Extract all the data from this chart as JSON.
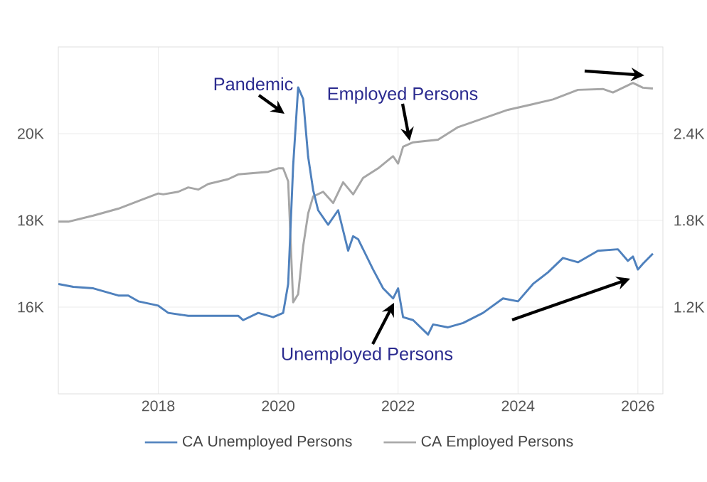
{
  "chart_data": {
    "type": "line",
    "annotations": [
      "Pandemic",
      "Employed Persons",
      "Unemployed Persons"
    ],
    "series": [
      {
        "name": "CA Unemployed Persons",
        "color": "#4f81bd",
        "axis": "y2",
        "x": [
          "2016-05",
          "2016-08",
          "2016-12",
          "2017-05",
          "2017-07",
          "2017-09",
          "2018-01",
          "2018-03",
          "2018-07",
          "2018-11",
          "2019-02",
          "2019-05",
          "2019-06",
          "2019-09",
          "2019-11",
          "2019-12",
          "2020-02",
          "2020-03",
          "2020-04",
          "2020-05",
          "2020-06",
          "2020-07",
          "2020-08",
          "2020-09",
          "2020-11",
          "2021-01",
          "2021-03",
          "2021-04",
          "2021-05",
          "2021-08",
          "2021-10",
          "2021-12",
          "2022-01",
          "2022-02",
          "2022-04",
          "2022-07",
          "2022-08",
          "2022-11",
          "2023-02",
          "2023-06",
          "2023-10",
          "2024-01",
          "2024-04",
          "2024-07",
          "2024-10",
          "2025-01",
          "2025-05",
          "2025-09",
          "2025-11",
          "2025-12",
          "2026-01",
          "2026-02",
          "2026-04"
        ],
        "values": [
          1360,
          1340,
          1330,
          1280,
          1280,
          1240,
          1210,
          1160,
          1140,
          1140,
          1140,
          1140,
          1110,
          1160,
          1140,
          1130,
          1160,
          1360,
          2180,
          2720,
          2640,
          2240,
          2010,
          1870,
          1770,
          1870,
          1590,
          1690,
          1670,
          1460,
          1330,
          1260,
          1330,
          1130,
          1110,
          1010,
          1080,
          1060,
          1090,
          1160,
          1260,
          1240,
          1360,
          1440,
          1540,
          1510,
          1590,
          1600,
          1520,
          1550,
          1460,
          1500,
          1570
        ]
      },
      {
        "name": "CA Employed Persons",
        "color": "#a6a6a6",
        "x": [
          "2016-05",
          "2016-07",
          "2016-12",
          "2017-05",
          "2017-10",
          "2018-01",
          "2018-02",
          "2018-05",
          "2018-07",
          "2018-09",
          "2018-11",
          "2019-03",
          "2019-05",
          "2019-08",
          "2019-11",
          "2020-01",
          "2020-02",
          "2020-03",
          "2020-04",
          "2020-05",
          "2020-06",
          "2020-07",
          "2020-08",
          "2020-10",
          "2020-12",
          "2021-02",
          "2021-04",
          "2021-06",
          "2021-09",
          "2021-12",
          "2022-01",
          "2022-02",
          "2022-04",
          "2022-09",
          "2023-01",
          "2023-06",
          "2023-11",
          "2024-04",
          "2024-08",
          "2025-01",
          "2025-06",
          "2025-08",
          "2025-12",
          "2026-02",
          "2026-04"
        ],
        "values": [
          17970,
          17970,
          18110,
          18270,
          18490,
          18620,
          18600,
          18660,
          18760,
          18710,
          18840,
          18950,
          19060,
          19090,
          19120,
          19200,
          19200,
          18900,
          16110,
          16300,
          17400,
          18160,
          18550,
          18660,
          18400,
          18880,
          18600,
          18980,
          19200,
          19480,
          19310,
          19700,
          19800,
          19860,
          20150,
          20350,
          20550,
          20680,
          20790,
          21010,
          21030,
          20950,
          21170,
          21060,
          21040
        ]
      }
    ],
    "xlim": [
      "2016-05",
      "2026-06"
    ],
    "xticks": [
      "2018",
      "2020",
      "2022",
      "2024",
      "2026"
    ],
    "ylim": [
      14000,
      22000
    ],
    "yticks": [
      {
        "value": 16000,
        "label": "16K"
      },
      {
        "value": 18000,
        "label": "18K"
      },
      {
        "value": 20000,
        "label": "20K"
      }
    ],
    "y2lim": [
      600,
      3000
    ],
    "y2ticks": [
      {
        "value": 1200,
        "label": "1.2K"
      },
      {
        "value": 1800,
        "label": "1.8K"
      },
      {
        "value": 2400,
        "label": "2.4K"
      }
    ],
    "grid": true,
    "legend": "bottom"
  }
}
